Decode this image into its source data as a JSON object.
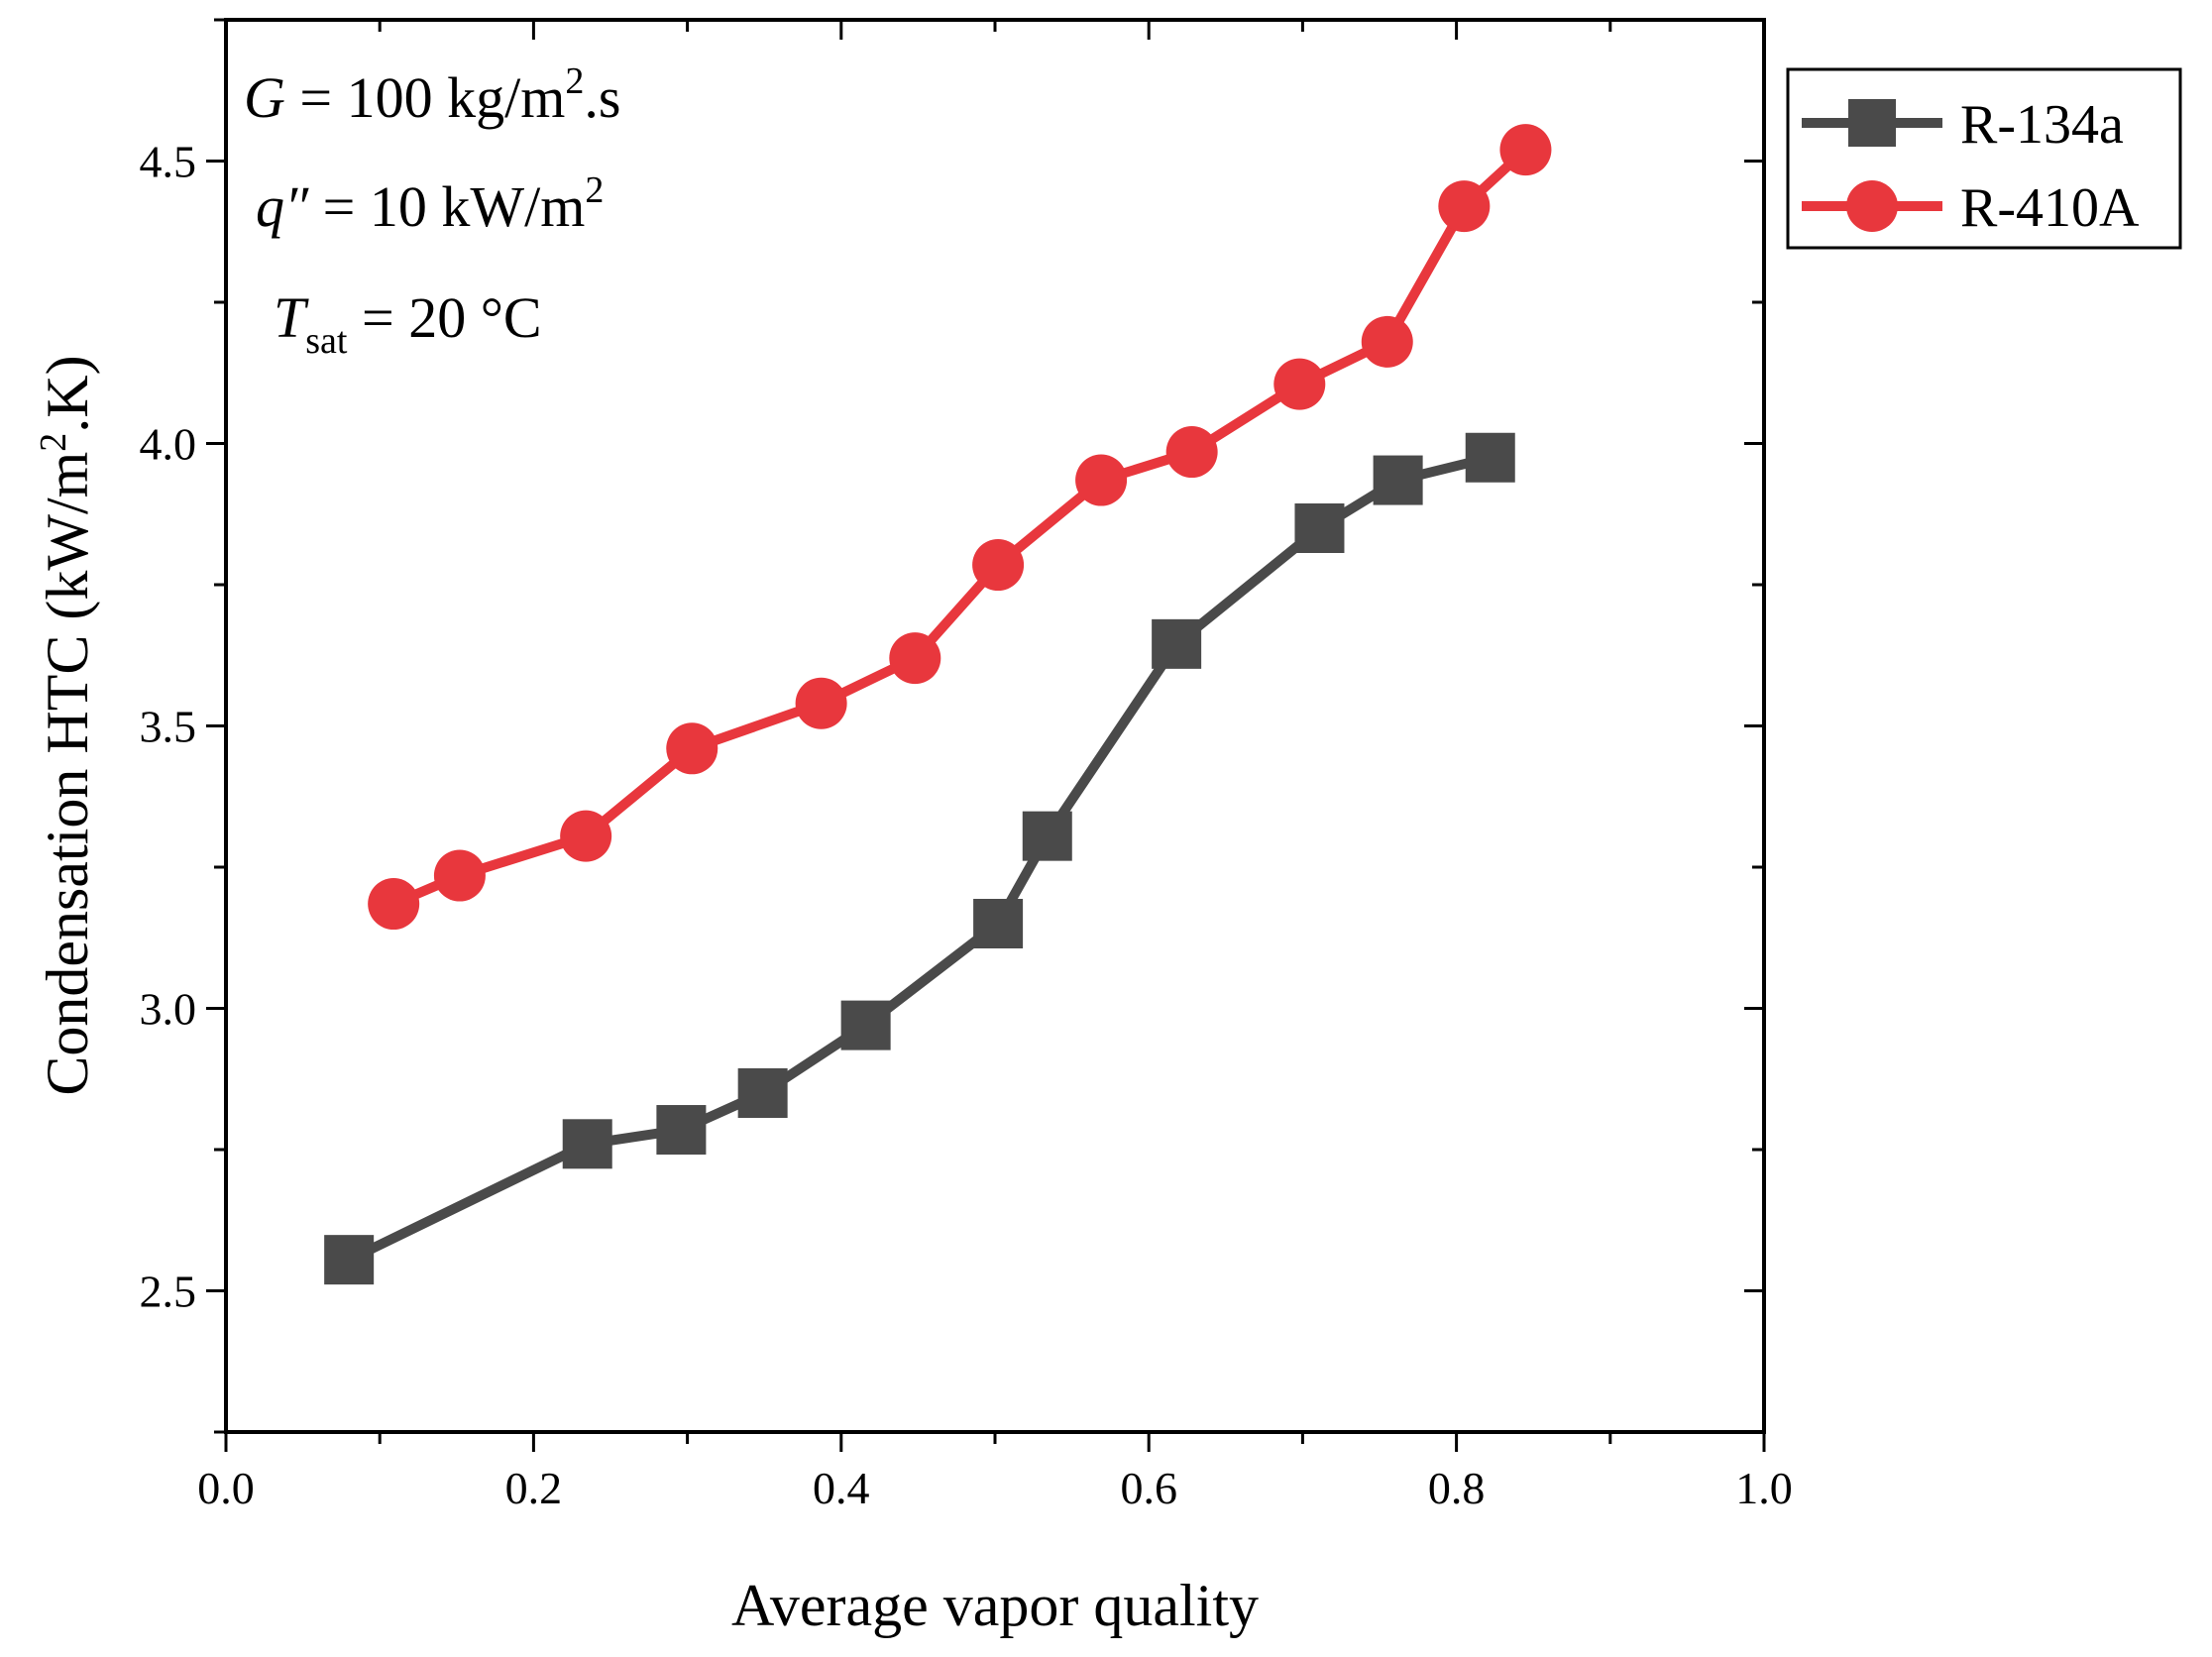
{
  "chart_data": {
    "type": "line",
    "xlabel": "Average vapor quality",
    "ylabel": "Condensation HTC (kW/m",
    "ylabel_sup": "2",
    "ylabel_tail": ".K)",
    "xlim": [
      0.0,
      1.0
    ],
    "ylim": [
      2.25,
      4.75
    ],
    "xticks": [
      0.0,
      0.2,
      0.4,
      0.6,
      0.8,
      1.0
    ],
    "xtick_labels": [
      "0.0",
      "0.2",
      "0.4",
      "0.6",
      "0.8",
      "1.0"
    ],
    "yticks": [
      2.5,
      3.0,
      3.5,
      4.0,
      4.5
    ],
    "ytick_labels": [
      "2.5",
      "3.0",
      "3.5",
      "4.0",
      "4.5"
    ],
    "grid": false,
    "legend_position": "outside-top-right",
    "annotations": [
      {
        "italic": "G",
        "text": " = 100 kg/m",
        "sup": "2",
        "tail": ".s"
      },
      {
        "italic": "q″",
        "text": " = 10 kW/m",
        "sup": "2",
        "tail": ""
      },
      {
        "italic": "T",
        "sub": "sat",
        "text": " = 20 °C"
      }
    ],
    "series": [
      {
        "name": "R-134a",
        "color": "#4a4a4a",
        "marker": "square",
        "x": [
          0.08,
          0.235,
          0.296,
          0.349,
          0.416,
          0.502,
          0.534,
          0.618,
          0.711,
          0.762,
          0.822
        ],
        "y": [
          2.555,
          2.76,
          2.785,
          2.85,
          2.97,
          3.15,
          3.305,
          3.645,
          3.85,
          3.935,
          3.975
        ]
      },
      {
        "name": "R-410A",
        "color": "#e8373d",
        "marker": "circle",
        "x": [
          0.109,
          0.152,
          0.234,
          0.303,
          0.387,
          0.448,
          0.502,
          0.569,
          0.628,
          0.698,
          0.755,
          0.805,
          0.845
        ],
        "y": [
          3.185,
          3.235,
          3.305,
          3.46,
          3.54,
          3.62,
          3.785,
          3.935,
          3.985,
          4.105,
          4.18,
          4.42,
          4.52
        ]
      }
    ]
  }
}
